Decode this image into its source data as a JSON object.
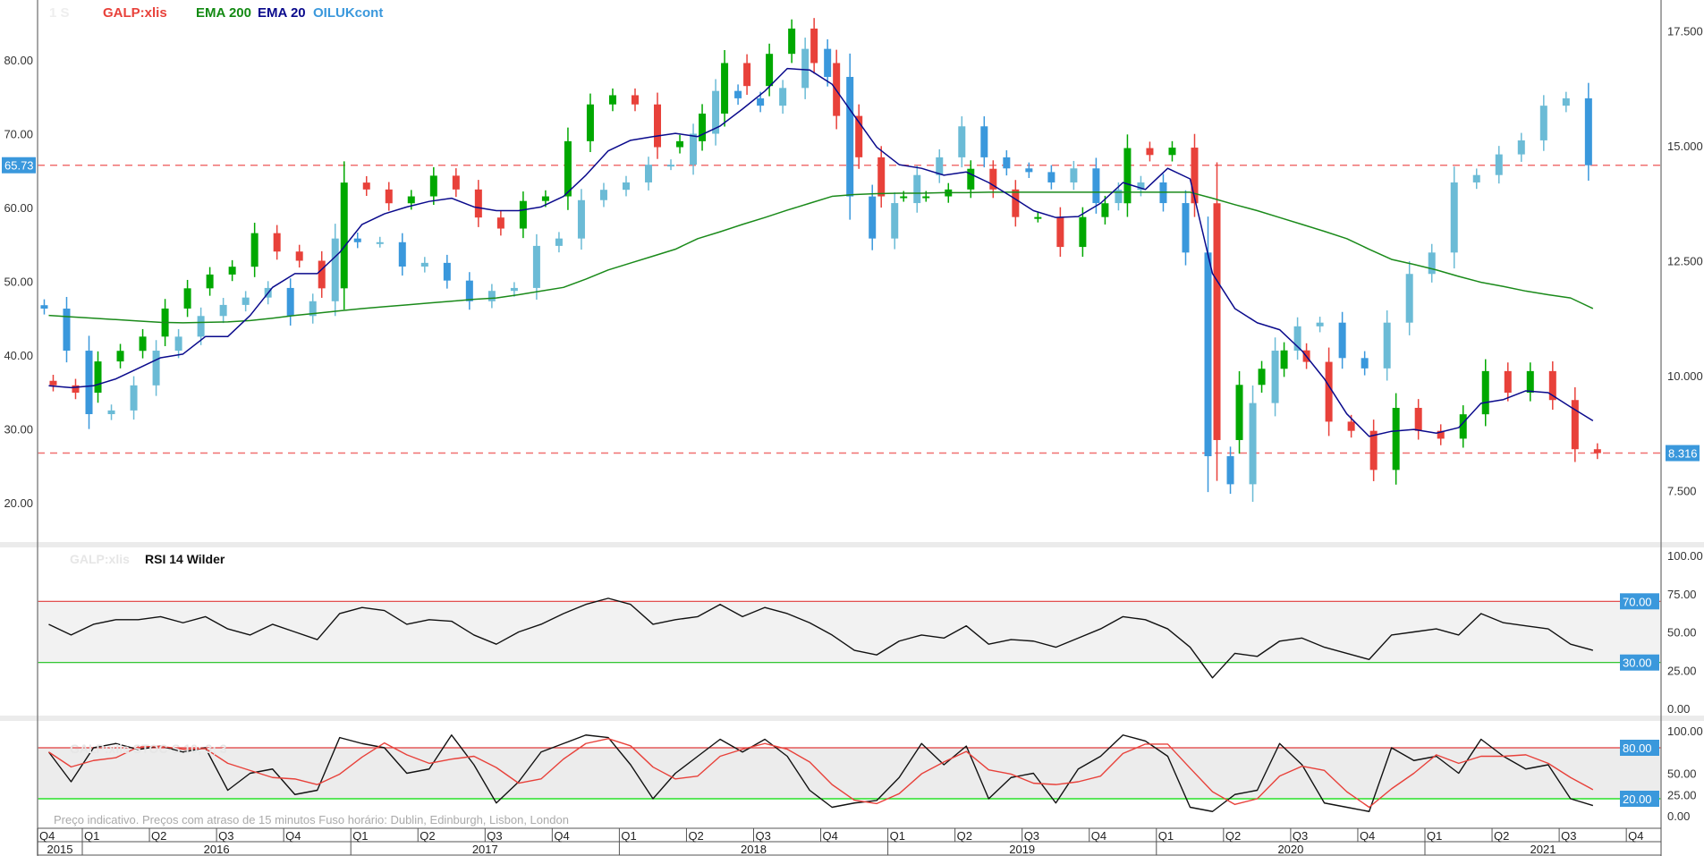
{
  "legend": {
    "period": "1 S",
    "symbol": "GALP:xlis",
    "ema200": "EMA 200",
    "ema20": "EMA 20",
    "compare": "OILUKcont"
  },
  "rsi_panel": {
    "symbol": "GALP:xlis",
    "title": "RSI 14 Wilder"
  },
  "stoch_panel": {
    "title": "GALP:xlis  STOC-S 10; 3; 3"
  },
  "footnote": "Preço indicativo. Preços com atraso de 15 minutos    Fuso horário: Dublin, Edinburgh, Lisbon, London",
  "colors": {
    "up": "#00a800",
    "down": "#e8413a",
    "oil_up": "#6bbbd6",
    "oil_down": "#3a98dc",
    "ema200": "#1a8a1a",
    "ema20": "#0a0a8c",
    "tag": "#3a98dc",
    "overbought": "#e03a3a",
    "oversold": "#18c018"
  },
  "chart_data": [
    {
      "type": "candlestick",
      "title": "",
      "months": [
        "2015-11",
        "2015-12",
        "2016-01",
        "2016-02",
        "2016-03",
        "2016-04",
        "2016-05",
        "2016-06",
        "2016-07",
        "2016-08",
        "2016-09",
        "2016-10",
        "2016-11",
        "2016-12",
        "2017-01",
        "2017-02",
        "2017-03",
        "2017-04",
        "2017-05",
        "2017-06",
        "2017-07",
        "2017-08",
        "2017-09",
        "2017-10",
        "2017-11",
        "2017-12",
        "2018-01",
        "2018-02",
        "2018-03",
        "2018-04",
        "2018-05",
        "2018-06",
        "2018-07",
        "2018-08",
        "2018-09",
        "2018-10",
        "2018-11",
        "2018-12",
        "2019-01",
        "2019-02",
        "2019-03",
        "2019-04",
        "2019-05",
        "2019-06",
        "2019-07",
        "2019-08",
        "2019-09",
        "2019-10",
        "2019-11",
        "2019-12",
        "2020-01",
        "2020-02",
        "2020-03",
        "2020-04",
        "2020-05",
        "2020-06",
        "2020-07",
        "2020-08",
        "2020-09",
        "2020-10",
        "2020-11",
        "2020-12",
        "2021-01",
        "2021-02",
        "2021-03",
        "2021-04",
        "2021-05",
        "2021-06",
        "2021-07",
        "2021-08"
      ],
      "series": [
        {
          "name": "GALP:xlis",
          "axis": "right",
          "close": [
            9.79,
            9.63,
            10.31,
            10.54,
            10.85,
            11.46,
            11.9,
            12.2,
            12.37,
            13.1,
            12.7,
            12.5,
            11.9,
            14.2,
            14.05,
            13.75,
            13.9,
            14.35,
            14.05,
            13.44,
            13.2,
            13.8,
            13.9,
            15.1,
            15.9,
            16.1,
            15.9,
            14.97,
            15.1,
            15.7,
            16.8,
            16.3,
            17.0,
            17.55,
            16.8,
            15.65,
            14.75,
            13.9,
            13.9,
            13.9,
            14.05,
            14.5,
            14.05,
            13.45,
            13.45,
            12.8,
            13.45,
            13.75,
            14.95,
            14.8,
            14.96,
            13.75,
            8.6,
            9.8,
            10.15,
            10.55,
            10.3,
            9.0,
            8.8,
            7.95,
            9.3,
            8.8,
            8.63,
            9.16,
            10.1,
            9.63,
            10.1,
            9.47,
            8.4,
            8.316
          ]
        },
        {
          "name": "EMA 200",
          "axis": "right",
          "values": [
            11.31,
            11.28,
            11.25,
            11.22,
            11.19,
            11.16,
            11.15,
            11.16,
            11.17,
            11.2,
            11.25,
            11.31,
            11.36,
            11.41,
            11.46,
            11.5,
            11.54,
            11.58,
            11.62,
            11.66,
            11.69,
            11.76,
            11.84,
            11.92,
            12.1,
            12.3,
            12.45,
            12.6,
            12.75,
            12.98,
            13.13,
            13.29,
            13.44,
            13.6,
            13.75,
            13.9,
            13.94,
            13.96,
            13.97,
            13.97,
            13.98,
            13.98,
            13.99,
            13.99,
            13.99,
            13.99,
            13.99,
            13.99,
            13.99,
            13.99,
            13.99,
            13.99,
            13.86,
            13.72,
            13.59,
            13.44,
            13.29,
            13.14,
            12.98,
            12.75,
            12.53,
            12.42,
            12.3,
            12.16,
            12.03,
            11.94,
            11.84,
            11.76,
            11.69,
            11.46
          ]
        },
        {
          "name": "EMA 20",
          "axis": "right",
          "values": [
            9.78,
            9.74,
            9.78,
            9.93,
            10.16,
            10.39,
            10.47,
            10.85,
            10.85,
            11.31,
            11.92,
            12.22,
            12.22,
            12.68,
            13.29,
            13.52,
            13.67,
            13.79,
            13.86,
            13.67,
            13.59,
            13.59,
            13.67,
            13.9,
            14.36,
            14.89,
            15.12,
            15.2,
            15.27,
            15.2,
            15.43,
            15.8,
            16.19,
            16.68,
            16.65,
            16.34,
            15.65,
            14.97,
            14.59,
            14.51,
            14.36,
            14.43,
            14.2,
            13.9,
            13.59,
            13.44,
            13.46,
            13.75,
            14.2,
            14.05,
            14.51,
            14.28,
            12.22,
            11.46,
            11.15,
            11.0,
            10.54,
            9.93,
            9.17,
            8.68,
            8.79,
            8.83,
            8.75,
            8.87,
            9.4,
            9.48,
            9.67,
            9.63,
            9.32,
            9.02
          ]
        },
        {
          "name": "OILUKcont",
          "axis": "left",
          "close": [
            46.3,
            40.6,
            32.0,
            32.5,
            35.9,
            40.6,
            42.5,
            45.3,
            46.8,
            47.8,
            49.1,
            45.3,
            47.3,
            55.8,
            55.3,
            55.3,
            52,
            52.5,
            50.1,
            47.3,
            48.7,
            49.1,
            54.8,
            55.8,
            61,
            62.4,
            63.4,
            65.8,
            65.8,
            70,
            75.8,
            74.8,
            73.8,
            76.2,
            81.5,
            77.7,
            61.5,
            55.8,
            60.6,
            64.4,
            66.8,
            71,
            66.8,
            65.3,
            64.8,
            63.4,
            65.3,
            60.6,
            62.4,
            63.4,
            60.6,
            53.9,
            26.3,
            22.5,
            33.5,
            40.6,
            43.9,
            44.4,
            39.6,
            38.2,
            44.4,
            51,
            53.9,
            63.4,
            64.4,
            67.2,
            69.1,
            73.8,
            74.8,
            65.73
          ]
        }
      ],
      "left_axis": {
        "range": [
          15,
          88
        ],
        "ticks": [
          "80.00",
          "70.00",
          "60.00",
          "50.00",
          "40.00",
          "30.00",
          "20.00"
        ],
        "tick_values": [
          80,
          70,
          60,
          50,
          40,
          30,
          20
        ]
      },
      "right_axis": {
        "range": [
          6.6,
          18.3
        ],
        "ticks": [
          "17.500",
          "15.000",
          "12.500",
          "10.000",
          "7.500"
        ],
        "tick_values": [
          17.5,
          15,
          12.5,
          10,
          7.5
        ]
      },
      "last_price_left": {
        "label": "65.73",
        "value": 65.73
      },
      "last_price_right": {
        "label": "8.316",
        "value": 8.316
      },
      "grid": false
    },
    {
      "type": "line",
      "title": "RSI 14 Wilder",
      "series": [
        {
          "name": "RSI 14 Wilder",
          "values": [
            55,
            48,
            55,
            58,
            58,
            60,
            56,
            60,
            52,
            48,
            55,
            50,
            45,
            62,
            66,
            64,
            55,
            58,
            57,
            48,
            42,
            50,
            55,
            62,
            68,
            72,
            68,
            55,
            58,
            60,
            68,
            60,
            66,
            62,
            56,
            48,
            38,
            35,
            44,
            48,
            46,
            54,
            42,
            45,
            44,
            40,
            46,
            52,
            60,
            58,
            52,
            40,
            20,
            36,
            34,
            44,
            46,
            40,
            36,
            32,
            48,
            50,
            52,
            48,
            62,
            56,
            54,
            52,
            42,
            38
          ]
        }
      ],
      "ylim": [
        0,
        100
      ],
      "ticks": [
        "100.00",
        "75.00",
        "50.00",
        "25.00",
        "0.00"
      ],
      "tick_values": [
        100,
        75,
        50,
        25,
        0
      ],
      "levels": [
        {
          "label": "70.00",
          "value": 70
        },
        {
          "label": "30.00",
          "value": 30
        }
      ]
    },
    {
      "type": "line",
      "title": "STOC-S 10; 3; 3",
      "series": [
        {
          "name": "%K",
          "values": [
            75,
            40,
            80,
            85,
            78,
            82,
            75,
            80,
            30,
            50,
            55,
            25,
            30,
            92,
            85,
            80,
            50,
            55,
            95,
            60,
            15,
            40,
            75,
            85,
            95,
            92,
            60,
            20,
            50,
            70,
            90,
            75,
            90,
            70,
            30,
            10,
            15,
            18,
            45,
            85,
            60,
            82,
            20,
            45,
            50,
            15,
            55,
            70,
            95,
            88,
            70,
            10,
            5,
            25,
            30,
            85,
            60,
            15,
            10,
            5,
            80,
            65,
            70,
            50,
            90,
            70,
            55,
            60,
            20,
            12
          ]
        },
        {
          "name": "%D",
          "values": [
            75,
            57.5,
            65,
            68.3,
            81,
            81.7,
            78.3,
            79,
            61.7,
            53.3,
            45,
            43.3,
            36.7,
            49,
            69,
            85.7,
            71.7,
            61.7,
            66.7,
            70,
            56.7,
            38.3,
            43.3,
            66.7,
            85,
            90.7,
            82.3,
            57.3,
            43.3,
            46.7,
            70,
            78.3,
            85,
            78.3,
            63.3,
            36.7,
            18.3,
            14.3,
            26,
            49.3,
            63.3,
            75.7,
            54,
            49,
            38.3,
            36.7,
            40,
            46.7,
            73.3,
            84.3,
            84.3,
            56,
            28.3,
            13.3,
            20,
            46.7,
            58.3,
            53.3,
            28.3,
            10,
            31.7,
            50,
            71.7,
            61.7,
            70,
            70,
            71.7,
            61.7,
            45,
            30.7
          ]
        }
      ],
      "ylim": [
        0,
        100
      ],
      "ticks": [
        "100.00",
        "50.00",
        "25.00",
        "0.00"
      ],
      "tick_values": [
        100,
        50,
        25,
        0
      ],
      "levels": [
        {
          "label": "80.00",
          "value": 80
        },
        {
          "label": "20.00",
          "value": 20
        }
      ]
    }
  ],
  "x_axis": {
    "quarters": [
      "Q4",
      "Q1",
      "Q2",
      "Q3",
      "Q4",
      "Q1",
      "Q2",
      "Q3",
      "Q4",
      "Q1",
      "Q2",
      "Q3",
      "Q4",
      "Q1",
      "Q2",
      "Q3",
      "Q4",
      "Q1",
      "Q2",
      "Q3",
      "Q4",
      "Q1",
      "Q2",
      "Q3",
      "Q4"
    ],
    "years": [
      "2015",
      "2016",
      "2017",
      "2018",
      "2019",
      "2020",
      "2021"
    ]
  }
}
